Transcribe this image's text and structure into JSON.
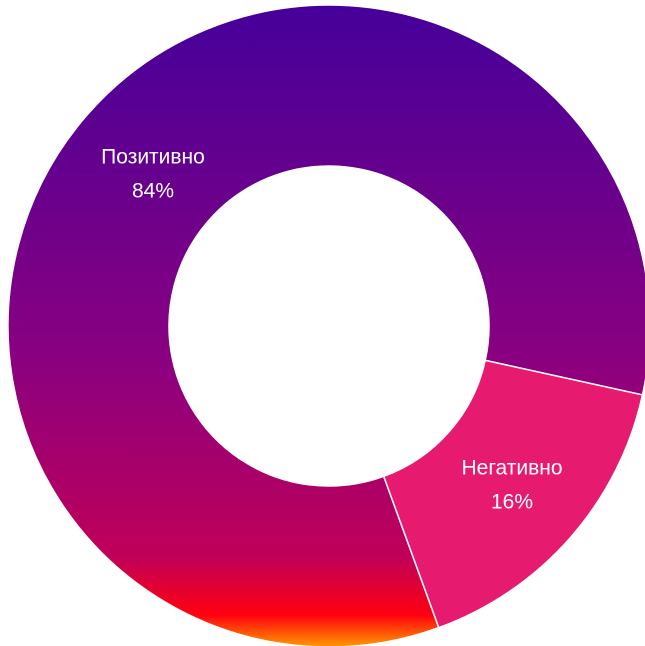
{
  "chart_data": {
    "type": "donut",
    "categories": [
      "Позитивно",
      "Негативно"
    ],
    "values": [
      84,
      16
    ],
    "value_labels": [
      "84%",
      "16%"
    ],
    "colors": [
      "#8a0080",
      "#e61a6e"
    ]
  }
}
